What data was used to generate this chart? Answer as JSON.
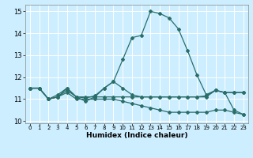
{
  "title": "",
  "xlabel": "Humidex (Indice chaleur)",
  "bg_color": "#cceeff",
  "line_color": "#2a6e6a",
  "grid_color": "#ffffff",
  "xlim": [
    -0.5,
    23.5
  ],
  "ylim": [
    9.9,
    15.3
  ],
  "yticks": [
    10,
    11,
    12,
    13,
    14,
    15
  ],
  "xticks": [
    0,
    1,
    2,
    3,
    4,
    5,
    6,
    7,
    8,
    9,
    10,
    11,
    12,
    13,
    14,
    15,
    16,
    17,
    18,
    19,
    20,
    21,
    22,
    23
  ],
  "series": [
    {
      "x": [
        0,
        1,
        2,
        3,
        4,
        5,
        6,
        7,
        8,
        9,
        10,
        11,
        12,
        13,
        14,
        15,
        16,
        17,
        18,
        19,
        20,
        21,
        22,
        23
      ],
      "y": [
        11.5,
        11.5,
        11.0,
        11.1,
        11.5,
        11.1,
        10.9,
        11.1,
        11.5,
        11.8,
        12.8,
        13.8,
        13.9,
        15.0,
        14.9,
        14.7,
        14.2,
        13.2,
        12.1,
        11.2,
        11.4,
        11.3,
        10.5,
        10.3
      ]
    },
    {
      "x": [
        0,
        1,
        2,
        3,
        4,
        5,
        6,
        7,
        8,
        9,
        10,
        11,
        12,
        13,
        14,
        15,
        16,
        17,
        18,
        19,
        20,
        21,
        22,
        23
      ],
      "y": [
        11.5,
        11.5,
        11.0,
        11.2,
        11.5,
        11.1,
        11.1,
        11.1,
        11.1,
        11.1,
        11.1,
        11.1,
        11.1,
        11.1,
        11.1,
        11.1,
        11.1,
        11.1,
        11.1,
        11.15,
        11.4,
        11.3,
        11.3,
        11.3
      ]
    },
    {
      "x": [
        0,
        1,
        2,
        3,
        4,
        5,
        6,
        7,
        8,
        9,
        10,
        11,
        12,
        13,
        14,
        15,
        16,
        17,
        18,
        19,
        20,
        21,
        22,
        23
      ],
      "y": [
        11.5,
        11.5,
        11.0,
        11.1,
        11.4,
        11.1,
        11.05,
        11.15,
        11.5,
        11.8,
        11.5,
        11.2,
        11.1,
        11.1,
        11.1,
        11.1,
        11.1,
        11.1,
        11.1,
        11.1,
        11.4,
        11.3,
        11.3,
        11.3
      ]
    },
    {
      "x": [
        0,
        1,
        2,
        3,
        4,
        5,
        6,
        7,
        8,
        9,
        10,
        11,
        12,
        13,
        14,
        15,
        16,
        17,
        18,
        19,
        20,
        21,
        22,
        23
      ],
      "y": [
        11.5,
        11.5,
        11.0,
        11.1,
        11.3,
        11.0,
        11.0,
        11.0,
        11.0,
        11.0,
        10.9,
        10.8,
        10.7,
        10.6,
        10.5,
        10.4,
        10.4,
        10.4,
        10.4,
        10.4,
        10.5,
        10.5,
        10.4,
        10.3
      ]
    }
  ]
}
